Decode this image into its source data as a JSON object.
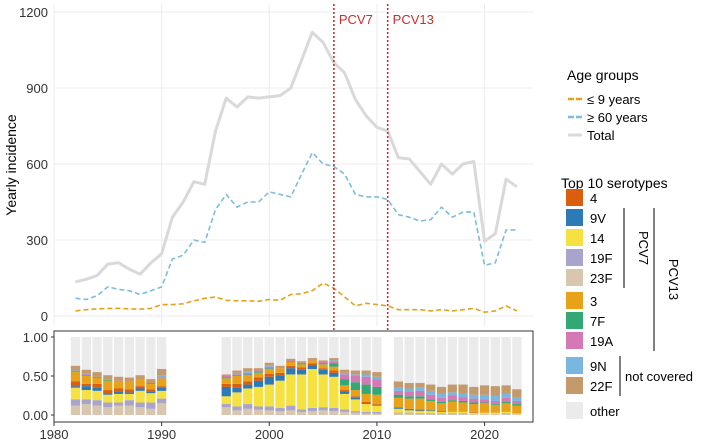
{
  "chart_data": [
    {
      "type": "line",
      "ylabel": "Yearly incidence",
      "ylim": [
        0,
        1200
      ],
      "yticks": [
        0,
        300,
        600,
        900,
        1200
      ],
      "xlim": [
        1980,
        2024.5
      ],
      "grid": true,
      "legend": {
        "title": "Age groups",
        "placement": "right",
        "entries": [
          "≤ 9 years",
          "≥ 60 years",
          "Total"
        ]
      },
      "annotations": [
        {
          "label": "PCV7",
          "x": 2006
        },
        {
          "label": "PCV13",
          "x": 2011
        }
      ],
      "series": [
        {
          "name": "≤ 9 years",
          "color": "#E3A21A",
          "dash": true,
          "x": [
            1982,
            1983,
            1984,
            1985,
            1986,
            1987,
            1988,
            1989,
            1990,
            1991,
            1992,
            1993,
            1994,
            1995,
            1996,
            1997,
            1998,
            1999,
            2000,
            2001,
            2002,
            2003,
            2004,
            2005,
            2006,
            2007,
            2008,
            2009,
            2010,
            2011,
            2012,
            2013,
            2014,
            2015,
            2016,
            2017,
            2018,
            2019,
            2020,
            2021,
            2022,
            2023
          ],
          "values": [
            20,
            25,
            28,
            30,
            30,
            28,
            27,
            30,
            45,
            45,
            48,
            60,
            70,
            75,
            62,
            60,
            60,
            58,
            65,
            62,
            85,
            88,
            100,
            130,
            110,
            75,
            40,
            50,
            45,
            40,
            25,
            25,
            25,
            20,
            25,
            20,
            25,
            30,
            15,
            20,
            40,
            20
          ]
        },
        {
          "name": "≥ 60 years",
          "color": "#7BBCE0",
          "dash": true,
          "x": [
            1982,
            1983,
            1984,
            1985,
            1986,
            1987,
            1988,
            1989,
            1990,
            1991,
            1992,
            1993,
            1994,
            1995,
            1996,
            1997,
            1998,
            1999,
            2000,
            2001,
            2002,
            2003,
            2004,
            2005,
            2006,
            2007,
            2008,
            2009,
            2010,
            2011,
            2012,
            2013,
            2014,
            2015,
            2016,
            2017,
            2018,
            2019,
            2020,
            2021,
            2022,
            2023
          ],
          "values": [
            70,
            65,
            80,
            115,
            105,
            100,
            85,
            100,
            115,
            225,
            240,
            300,
            290,
            420,
            480,
            430,
            450,
            450,
            490,
            480,
            470,
            560,
            645,
            600,
            590,
            560,
            480,
            470,
            470,
            460,
            400,
            390,
            375,
            380,
            430,
            390,
            410,
            410,
            200,
            210,
            340,
            340
          ]
        },
        {
          "name": "Total",
          "color": "#D9D9D9",
          "dash": false,
          "x": [
            1982,
            1983,
            1984,
            1985,
            1986,
            1987,
            1988,
            1989,
            1990,
            1991,
            1992,
            1993,
            1994,
            1995,
            1996,
            1997,
            1998,
            1999,
            2000,
            2001,
            2002,
            2003,
            2004,
            2005,
            2006,
            2007,
            2008,
            2009,
            2010,
            2011,
            2012,
            2013,
            2014,
            2015,
            2016,
            2017,
            2018,
            2019,
            2020,
            2021,
            2022,
            2023
          ],
          "values": [
            135,
            145,
            160,
            205,
            210,
            185,
            165,
            210,
            245,
            390,
            450,
            530,
            520,
            730,
            860,
            825,
            865,
            860,
            865,
            870,
            900,
            1010,
            1120,
            1080,
            1000,
            960,
            855,
            790,
            745,
            730,
            625,
            620,
            570,
            520,
            600,
            560,
            600,
            610,
            295,
            325,
            540,
            510
          ]
        }
      ]
    },
    {
      "type": "bar",
      "stacked": true,
      "ylim": [
        0,
        1
      ],
      "yticks": [
        "0.00",
        "0.50",
        "1.00"
      ],
      "xticks": [
        "1980",
        "1990",
        "2000",
        "2010",
        "2020"
      ],
      "gaps": [
        [
          1991,
          1995
        ]
      ],
      "legend": {
        "title": "Top 10 serotypes",
        "placement": "right",
        "entries": [
          {
            "name": "4",
            "color": "#D95F0E"
          },
          {
            "name": "9V",
            "color": "#2C7BB6"
          },
          {
            "name": "14",
            "color": "#F5E140"
          },
          {
            "name": "19F",
            "color": "#A8A4CC"
          },
          {
            "name": "23F",
            "color": "#D8C6AE"
          },
          {
            "name": "3",
            "color": "#E8A21A"
          },
          {
            "name": "7F",
            "color": "#33A874"
          },
          {
            "name": "19A",
            "color": "#D479B5"
          },
          {
            "name": "9N",
            "color": "#79B7E0"
          },
          {
            "name": "22F",
            "color": "#C49A6C"
          },
          {
            "name": "other",
            "color": "#EBEBEB"
          }
        ],
        "groups": [
          {
            "label": "PCV7",
            "from": "9V",
            "to": "23F"
          },
          {
            "label": "PCV13",
            "from": "9V",
            "to": "19A"
          },
          {
            "label": "not covered",
            "from": "9N",
            "to": "22F"
          }
        ]
      },
      "years": [
        1982,
        1983,
        1984,
        1985,
        1986,
        1987,
        1988,
        1989,
        1990,
        1996,
        1997,
        1998,
        1999,
        2000,
        2001,
        2002,
        2003,
        2004,
        2005,
        2006,
        2007,
        2008,
        2009,
        2010,
        2012,
        2013,
        2014,
        2015,
        2016,
        2017,
        2018,
        2019,
        2020,
        2021,
        2022,
        2023
      ],
      "stack_order": [
        "23F",
        "19F",
        "14",
        "9V",
        "4",
        "3",
        "7F",
        "19A",
        "9N",
        "22F"
      ],
      "shares": [
        [
          0.12,
          0.08,
          0.15,
          0.02,
          0.06,
          0.12,
          0.01,
          0.0,
          0.01,
          0.06
        ],
        [
          0.14,
          0.06,
          0.12,
          0.05,
          0.03,
          0.1,
          0.01,
          0.01,
          0.01,
          0.05
        ],
        [
          0.12,
          0.07,
          0.12,
          0.04,
          0.05,
          0.08,
          0.01,
          0.0,
          0.0,
          0.06
        ],
        [
          0.1,
          0.06,
          0.1,
          0.02,
          0.04,
          0.12,
          0.01,
          0.01,
          0.0,
          0.05
        ],
        [
          0.12,
          0.04,
          0.11,
          0.03,
          0.04,
          0.09,
          0.0,
          0.01,
          0.0,
          0.05
        ],
        [
          0.12,
          0.07,
          0.08,
          0.02,
          0.04,
          0.1,
          0.0,
          0.0,
          0.0,
          0.05
        ],
        [
          0.1,
          0.06,
          0.15,
          0.03,
          0.03,
          0.08,
          0.0,
          0.0,
          0.0,
          0.06
        ],
        [
          0.08,
          0.08,
          0.12,
          0.02,
          0.03,
          0.07,
          0.01,
          0.0,
          0.0,
          0.05
        ],
        [
          0.15,
          0.06,
          0.1,
          0.04,
          0.02,
          0.1,
          0.0,
          0.01,
          0.03,
          0.08
        ],
        [
          0.1,
          0.04,
          0.1,
          0.12,
          0.04,
          0.07,
          0.01,
          0.02,
          0.0,
          0.02
        ],
        [
          0.06,
          0.05,
          0.18,
          0.06,
          0.05,
          0.1,
          0.01,
          0.01,
          0.02,
          0.03
        ],
        [
          0.08,
          0.06,
          0.2,
          0.05,
          0.04,
          0.08,
          0.01,
          0.02,
          0.02,
          0.04
        ],
        [
          0.07,
          0.04,
          0.25,
          0.08,
          0.04,
          0.06,
          0.01,
          0.02,
          0.0,
          0.03
        ],
        [
          0.06,
          0.05,
          0.28,
          0.1,
          0.04,
          0.06,
          0.01,
          0.02,
          0.02,
          0.03
        ],
        [
          0.05,
          0.04,
          0.35,
          0.07,
          0.03,
          0.06,
          0.0,
          0.01,
          0.0,
          0.02
        ],
        [
          0.06,
          0.06,
          0.4,
          0.08,
          0.03,
          0.05,
          0.01,
          0.01,
          0.0,
          0.02
        ],
        [
          0.04,
          0.03,
          0.45,
          0.06,
          0.03,
          0.04,
          0.01,
          0.01,
          0.0,
          0.02
        ],
        [
          0.05,
          0.04,
          0.5,
          0.05,
          0.02,
          0.04,
          0.0,
          0.01,
          0.0,
          0.02
        ],
        [
          0.06,
          0.04,
          0.42,
          0.06,
          0.02,
          0.05,
          0.01,
          0.02,
          0.0,
          0.02
        ],
        [
          0.05,
          0.04,
          0.4,
          0.05,
          0.03,
          0.05,
          0.04,
          0.03,
          0.01,
          0.03
        ],
        [
          0.04,
          0.03,
          0.2,
          0.03,
          0.02,
          0.06,
          0.08,
          0.06,
          0.02,
          0.04
        ],
        [
          0.03,
          0.02,
          0.15,
          0.02,
          0.02,
          0.08,
          0.1,
          0.08,
          0.02,
          0.05
        ],
        [
          0.02,
          0.02,
          0.1,
          0.01,
          0.02,
          0.1,
          0.12,
          0.1,
          0.03,
          0.05
        ],
        [
          0.02,
          0.02,
          0.08,
          0.01,
          0.01,
          0.12,
          0.1,
          0.1,
          0.03,
          0.06
        ],
        [
          0.02,
          0.01,
          0.05,
          0.01,
          0.01,
          0.12,
          0.04,
          0.05,
          0.04,
          0.08
        ],
        [
          0.02,
          0.01,
          0.03,
          0.01,
          0.01,
          0.13,
          0.03,
          0.06,
          0.04,
          0.07
        ],
        [
          0.01,
          0.01,
          0.03,
          0.01,
          0.01,
          0.14,
          0.03,
          0.07,
          0.04,
          0.06
        ],
        [
          0.01,
          0.01,
          0.03,
          0.01,
          0.0,
          0.12,
          0.02,
          0.06,
          0.05,
          0.08
        ],
        [
          0.01,
          0.01,
          0.02,
          0.01,
          0.0,
          0.1,
          0.02,
          0.05,
          0.05,
          0.09
        ],
        [
          0.01,
          0.01,
          0.02,
          0.0,
          0.0,
          0.13,
          0.02,
          0.06,
          0.04,
          0.1
        ],
        [
          0.01,
          0.01,
          0.02,
          0.0,
          0.0,
          0.12,
          0.02,
          0.05,
          0.04,
          0.12
        ],
        [
          0.01,
          0.0,
          0.02,
          0.0,
          0.01,
          0.1,
          0.02,
          0.05,
          0.05,
          0.1
        ],
        [
          0.01,
          0.0,
          0.02,
          0.0,
          0.0,
          0.12,
          0.01,
          0.04,
          0.06,
          0.12
        ],
        [
          0.01,
          0.0,
          0.02,
          0.0,
          0.0,
          0.1,
          0.01,
          0.04,
          0.07,
          0.12
        ],
        [
          0.01,
          0.01,
          0.02,
          0.0,
          0.0,
          0.11,
          0.02,
          0.05,
          0.05,
          0.11
        ],
        [
          0.01,
          0.0,
          0.01,
          0.0,
          0.0,
          0.1,
          0.02,
          0.04,
          0.05,
          0.1
        ]
      ]
    }
  ]
}
